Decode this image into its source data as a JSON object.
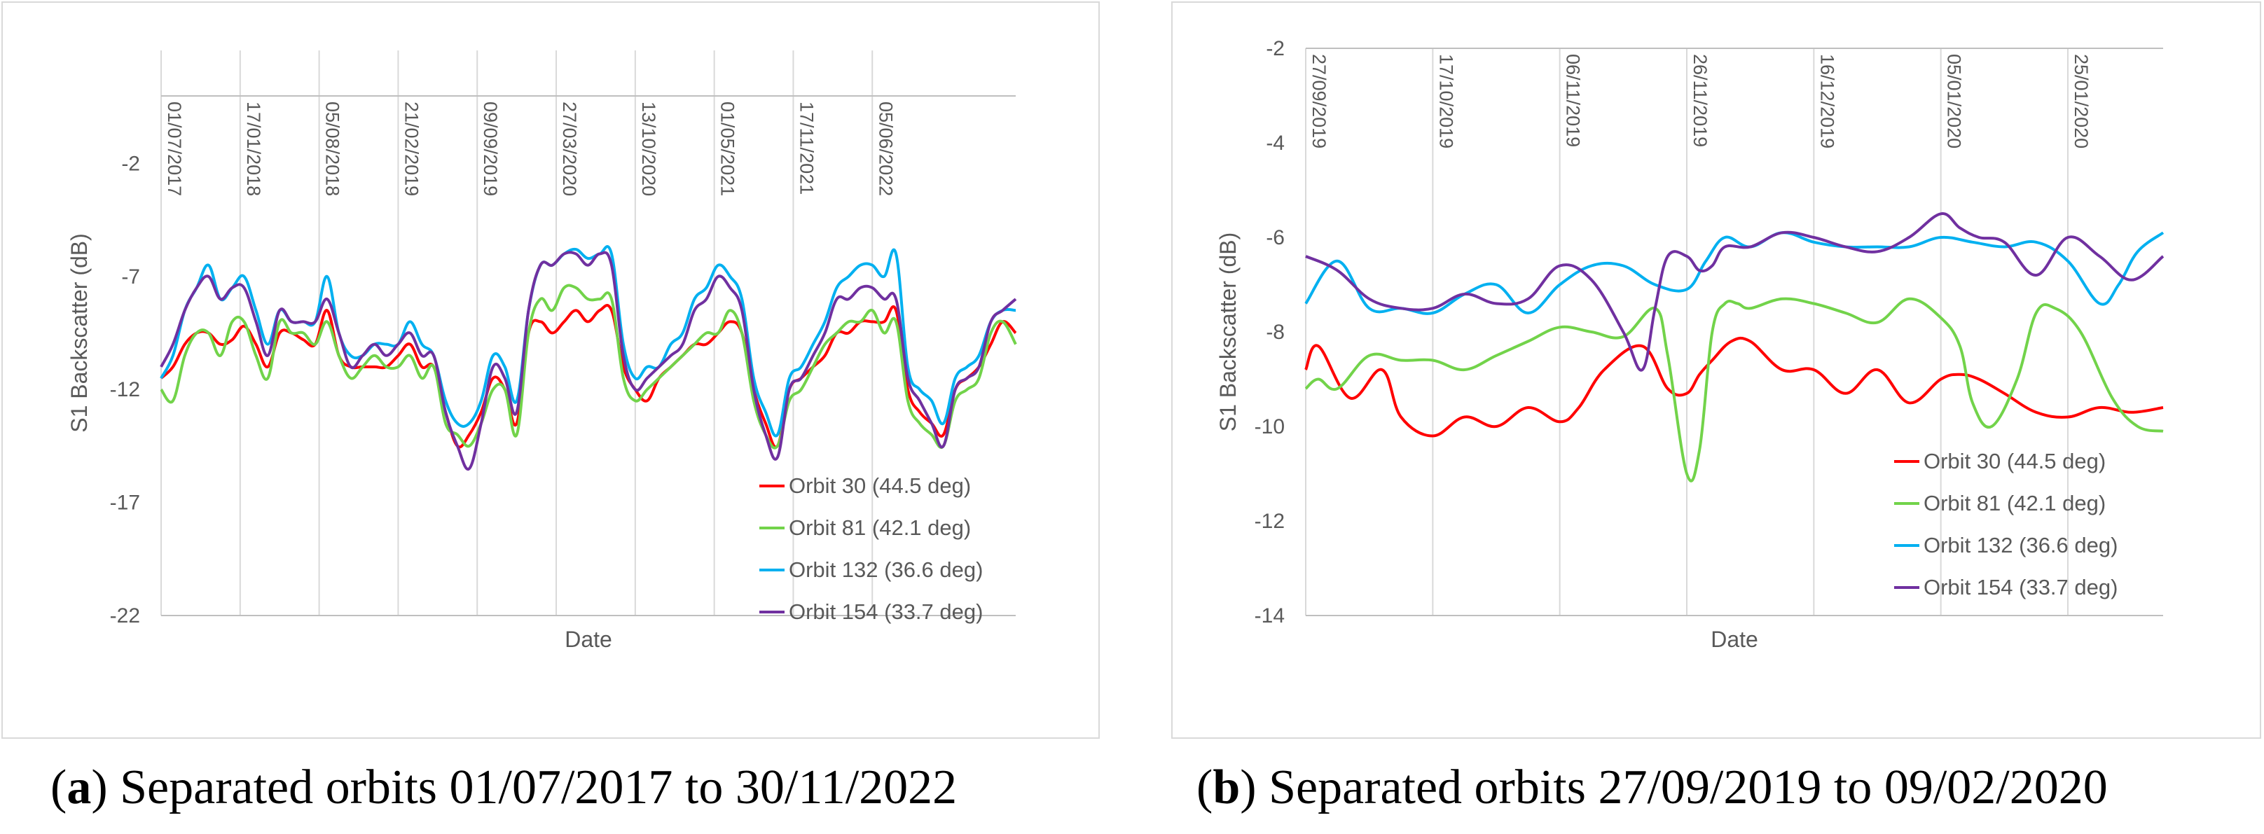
{
  "chart_data": [
    {
      "type": "line",
      "xlabel": "Date",
      "ylabel": "S1 Backscatter (dB)",
      "ylim": [
        -22,
        3
      ],
      "yticks": [
        -2,
        -7,
        -12,
        -17,
        -22
      ],
      "xlim_days": [
        0,
        2163
      ],
      "date_ticks": [
        "01/07/2017",
        "17/01/2018",
        "05/08/2018",
        "21/02/2019",
        "09/09/2019",
        "27/03/2020",
        "13/10/2020",
        "01/05/2021",
        "17/11/2021",
        "05/06/2022"
      ],
      "date_tick_days": [
        0,
        200,
        400,
        600,
        800,
        1000,
        1200,
        1400,
        1600,
        1800
      ],
      "legend_position": "bottom-right",
      "grid": "vertical",
      "series": [
        {
          "name": "Orbit 30 (44.5 deg)",
          "color": "#ff0000",
          "x": [
            0,
            30,
            60,
            90,
            120,
            150,
            180,
            210,
            240,
            270,
            300,
            330,
            360,
            390,
            420,
            450,
            480,
            510,
            540,
            570,
            600,
            630,
            660,
            690,
            720,
            750,
            780,
            810,
            840,
            870,
            900,
            930,
            960,
            990,
            1020,
            1050,
            1080,
            1110,
            1140,
            1170,
            1200,
            1230,
            1260,
            1290,
            1320,
            1350,
            1380,
            1410,
            1440,
            1470,
            1500,
            1530,
            1560,
            1590,
            1620,
            1650,
            1680,
            1710,
            1740,
            1770,
            1800,
            1830,
            1860,
            1890,
            1920,
            1950,
            1980,
            2010,
            2040,
            2070,
            2100,
            2130,
            2163
          ],
          "y": [
            -11.5,
            -11,
            -10,
            -9.5,
            -9.5,
            -10,
            -9.8,
            -9.2,
            -10,
            -11,
            -9.5,
            -9.5,
            -9.8,
            -10,
            -8.5,
            -10.5,
            -11,
            -11,
            -11,
            -11,
            -10.5,
            -10,
            -11,
            -11,
            -13,
            -14.5,
            -14,
            -13,
            -11.5,
            -12,
            -13.5,
            -9.5,
            -9,
            -9.5,
            -9,
            -8.5,
            -9,
            -8.5,
            -8.5,
            -11,
            -12,
            -12.5,
            -11.5,
            -11,
            -10.5,
            -10,
            -10,
            -9.5,
            -9,
            -9.5,
            -12,
            -13.5,
            -14.5,
            -12,
            -11.5,
            -11,
            -10.5,
            -9.5,
            -9.5,
            -9,
            -9,
            -9,
            -8.5,
            -12,
            -13,
            -13.5,
            -14,
            -12,
            -11.5,
            -11,
            -10,
            -9,
            -9.5
          ]
        },
        {
          "name": "Orbit 81 (42.1 deg)",
          "color": "#72d34a",
          "x": [
            0,
            30,
            60,
            90,
            120,
            150,
            180,
            210,
            240,
            270,
            300,
            330,
            360,
            390,
            420,
            450,
            480,
            510,
            540,
            570,
            600,
            630,
            660,
            690,
            720,
            750,
            780,
            810,
            840,
            870,
            900,
            930,
            960,
            990,
            1020,
            1050,
            1080,
            1110,
            1140,
            1170,
            1200,
            1230,
            1260,
            1290,
            1320,
            1350,
            1380,
            1410,
            1440,
            1470,
            1500,
            1530,
            1560,
            1590,
            1620,
            1650,
            1680,
            1710,
            1740,
            1770,
            1800,
            1830,
            1860,
            1890,
            1920,
            1950,
            1980,
            2010,
            2040,
            2070,
            2100,
            2130,
            2163
          ],
          "y": [
            -12,
            -12.5,
            -10.5,
            -9.5,
            -9.5,
            -10.5,
            -9,
            -9,
            -10.5,
            -11.5,
            -9,
            -9.5,
            -9.5,
            -10,
            -9,
            -10.5,
            -11.5,
            -11,
            -10.5,
            -11,
            -11,
            -10.5,
            -11.5,
            -11,
            -13.5,
            -14,
            -14.5,
            -13.5,
            -12,
            -12,
            -14,
            -9.5,
            -8,
            -8.5,
            -7.5,
            -7.5,
            -8,
            -8,
            -8,
            -11.5,
            -12.5,
            -12,
            -11.5,
            -11,
            -10.5,
            -10,
            -9.5,
            -9.5,
            -8.5,
            -9.5,
            -12.5,
            -14,
            -14.5,
            -12.5,
            -12,
            -11,
            -10,
            -9.5,
            -9,
            -9,
            -8.5,
            -9.5,
            -9,
            -12.5,
            -13.5,
            -14,
            -14.5,
            -12.5,
            -12,
            -11.5,
            -9.5,
            -9,
            -10
          ]
        },
        {
          "name": "Orbit 132 (36.6 deg)",
          "color": "#00b0f0",
          "x": [
            0,
            30,
            60,
            90,
            120,
            150,
            180,
            210,
            240,
            270,
            300,
            330,
            360,
            390,
            420,
            450,
            480,
            510,
            540,
            570,
            600,
            630,
            660,
            690,
            720,
            750,
            780,
            810,
            840,
            870,
            900,
            930,
            960,
            990,
            1020,
            1050,
            1080,
            1110,
            1140,
            1170,
            1200,
            1230,
            1260,
            1290,
            1320,
            1350,
            1380,
            1410,
            1440,
            1470,
            1500,
            1530,
            1560,
            1590,
            1620,
            1650,
            1680,
            1710,
            1740,
            1770,
            1800,
            1830,
            1860,
            1890,
            1920,
            1950,
            1980,
            2010,
            2040,
            2070,
            2100,
            2130,
            2163
          ],
          "y": [
            -11.5,
            -10.5,
            -8.5,
            -7.5,
            -6.5,
            -8,
            -7.5,
            -7,
            -8.5,
            -10,
            -8.5,
            -9,
            -9,
            -9,
            -7,
            -9.5,
            -10.5,
            -10.5,
            -10,
            -10,
            -10,
            -9,
            -10,
            -10.5,
            -12.5,
            -13.5,
            -13.5,
            -12.5,
            -10.5,
            -11,
            -12.5,
            -8.5,
            -6.5,
            -6.5,
            -6,
            -5.8,
            -6.2,
            -6,
            -6,
            -10,
            -11.5,
            -11,
            -11,
            -10,
            -9.5,
            -8,
            -7.5,
            -6.5,
            -7,
            -8,
            -11.5,
            -13,
            -14,
            -11.5,
            -11,
            -10,
            -9,
            -7.5,
            -7,
            -6.5,
            -6.5,
            -7,
            -6,
            -11,
            -12,
            -12.5,
            -13.5,
            -11.5,
            -11,
            -10.5,
            -9,
            -8.5,
            -8.5
          ]
        },
        {
          "name": "Orbit 154 (33.7 deg)",
          "color": "#7030a0",
          "x": [
            0,
            30,
            60,
            90,
            120,
            150,
            180,
            210,
            240,
            270,
            300,
            330,
            360,
            390,
            420,
            450,
            480,
            510,
            540,
            570,
            600,
            630,
            660,
            690,
            720,
            750,
            780,
            810,
            840,
            870,
            900,
            930,
            960,
            990,
            1020,
            1050,
            1080,
            1110,
            1140,
            1170,
            1200,
            1230,
            1260,
            1290,
            1320,
            1350,
            1380,
            1410,
            1440,
            1470,
            1500,
            1530,
            1560,
            1590,
            1620,
            1650,
            1680,
            1710,
            1740,
            1770,
            1800,
            1830,
            1860,
            1890,
            1920,
            1950,
            1980,
            2010,
            2040,
            2070,
            2100,
            2130,
            2163
          ],
          "y": [
            -11,
            -10,
            -8.5,
            -7.5,
            -7,
            -8,
            -7.5,
            -7.5,
            -9,
            -10.5,
            -8.5,
            -9,
            -9,
            -9,
            -8,
            -9.5,
            -11,
            -10.5,
            -10,
            -10.5,
            -10,
            -9.5,
            -10.5,
            -10.5,
            -13,
            -14.5,
            -15.5,
            -13.5,
            -11,
            -11.5,
            -13,
            -8.5,
            -6.5,
            -6.5,
            -6,
            -6,
            -6.5,
            -6,
            -6.5,
            -10.5,
            -12,
            -11.5,
            -11,
            -10.5,
            -10,
            -8.5,
            -8,
            -7,
            -7.5,
            -8.5,
            -12,
            -14,
            -15,
            -12,
            -11.5,
            -10.5,
            -9.5,
            -8,
            -8,
            -7.5,
            -7.5,
            -8,
            -8,
            -11.5,
            -12.5,
            -13.5,
            -14.5,
            -12,
            -11.5,
            -11,
            -9,
            -8.5,
            -8
          ]
        }
      ]
    },
    {
      "type": "line",
      "xlabel": "Date",
      "ylabel": "S1 Backscatter (dB)",
      "ylim": [
        -14,
        -2
      ],
      "yticks": [
        -2,
        -4,
        -6,
        -8,
        -10,
        -12,
        -14
      ],
      "xlim_days": [
        0,
        135
      ],
      "date_ticks": [
        "27/09/2019",
        "17/10/2019",
        "06/11/2019",
        "26/11/2019",
        "16/12/2019",
        "05/01/2020",
        "25/01/2020"
      ],
      "date_tick_days": [
        0,
        20,
        40,
        60,
        80,
        100,
        120
      ],
      "legend_position": "bottom-right",
      "grid": "vertical",
      "series": [
        {
          "name": "Orbit 30 (44.5 deg)",
          "color": "#ff0000",
          "x": [
            0,
            2,
            7,
            12,
            15,
            20,
            25,
            30,
            35,
            40,
            43,
            47,
            53,
            57,
            60,
            62,
            64,
            67,
            70,
            75,
            80,
            85,
            90,
            95,
            100,
            103,
            106,
            110,
            115,
            120,
            125,
            130,
            135
          ],
          "y": [
            -8.8,
            -8.3,
            -9.4,
            -8.8,
            -9.8,
            -10.2,
            -9.8,
            -10,
            -9.6,
            -9.9,
            -9.6,
            -8.8,
            -8.3,
            -9.2,
            -9.3,
            -8.9,
            -8.6,
            -8.2,
            -8.2,
            -8.8,
            -8.8,
            -9.3,
            -8.8,
            -9.5,
            -9,
            -8.9,
            -9,
            -9.3,
            -9.7,
            -9.8,
            -9.6,
            -9.7,
            -9.6
          ]
        },
        {
          "name": "Orbit 81 (42.1 deg)",
          "color": "#72d34a",
          "x": [
            0,
            2,
            5,
            10,
            15,
            20,
            25,
            30,
            35,
            40,
            45,
            50,
            55,
            57,
            60,
            62,
            64,
            66,
            68,
            70,
            75,
            80,
            85,
            90,
            95,
            100,
            103,
            105,
            108,
            112,
            115,
            118,
            122,
            127,
            131,
            135
          ],
          "y": [
            -9.2,
            -9,
            -9.2,
            -8.5,
            -8.6,
            -8.6,
            -8.8,
            -8.5,
            -8.2,
            -7.9,
            -8,
            -8.1,
            -7.5,
            -8.5,
            -11,
            -10.5,
            -8,
            -7.4,
            -7.4,
            -7.5,
            -7.3,
            -7.4,
            -7.6,
            -7.8,
            -7.3,
            -7.7,
            -8.3,
            -9.5,
            -10,
            -9,
            -7.6,
            -7.5,
            -8,
            -9.4,
            -10,
            -10.1
          ]
        },
        {
          "name": "Orbit 132 (36.6 deg)",
          "color": "#00b0f0",
          "x": [
            0,
            5,
            10,
            15,
            20,
            25,
            30,
            35,
            40,
            45,
            50,
            55,
            60,
            63,
            66,
            70,
            75,
            80,
            85,
            90,
            95,
            100,
            105,
            110,
            115,
            120,
            125,
            128,
            131,
            135
          ],
          "y": [
            -7.4,
            -6.5,
            -7.5,
            -7.5,
            -7.6,
            -7.2,
            -7,
            -7.6,
            -7,
            -6.6,
            -6.6,
            -7,
            -7.1,
            -6.5,
            -6,
            -6.2,
            -5.9,
            -6.1,
            -6.2,
            -6.2,
            -6.2,
            -6,
            -6.1,
            -6.2,
            -6.1,
            -6.5,
            -7.4,
            -7,
            -6.3,
            -5.9
          ]
        },
        {
          "name": "Orbit 154 (33.7 deg)",
          "color": "#7030a0",
          "x": [
            0,
            5,
            10,
            15,
            20,
            25,
            30,
            35,
            40,
            45,
            50,
            53,
            55,
            57,
            60,
            62,
            64,
            66,
            70,
            75,
            80,
            85,
            90,
            95,
            100,
            103,
            106,
            110,
            115,
            120,
            125,
            130,
            135
          ],
          "y": [
            -6.4,
            -6.7,
            -7.3,
            -7.5,
            -7.5,
            -7.2,
            -7.4,
            -7.3,
            -6.6,
            -6.9,
            -8,
            -8.8,
            -7.5,
            -6.4,
            -6.4,
            -6.7,
            -6.6,
            -6.2,
            -6.2,
            -5.9,
            -6,
            -6.2,
            -6.3,
            -6,
            -5.5,
            -5.8,
            -6,
            -6.1,
            -6.8,
            -6,
            -6.4,
            -6.9,
            -6.4
          ]
        }
      ]
    }
  ],
  "captions": {
    "a": {
      "label": "(a)",
      "text": "Separated orbits 01/07/2017 to 30/11/2022"
    },
    "b": {
      "label": "(b)",
      "text": "Separated orbits 27/09/2019 to 09/02/2020"
    }
  }
}
